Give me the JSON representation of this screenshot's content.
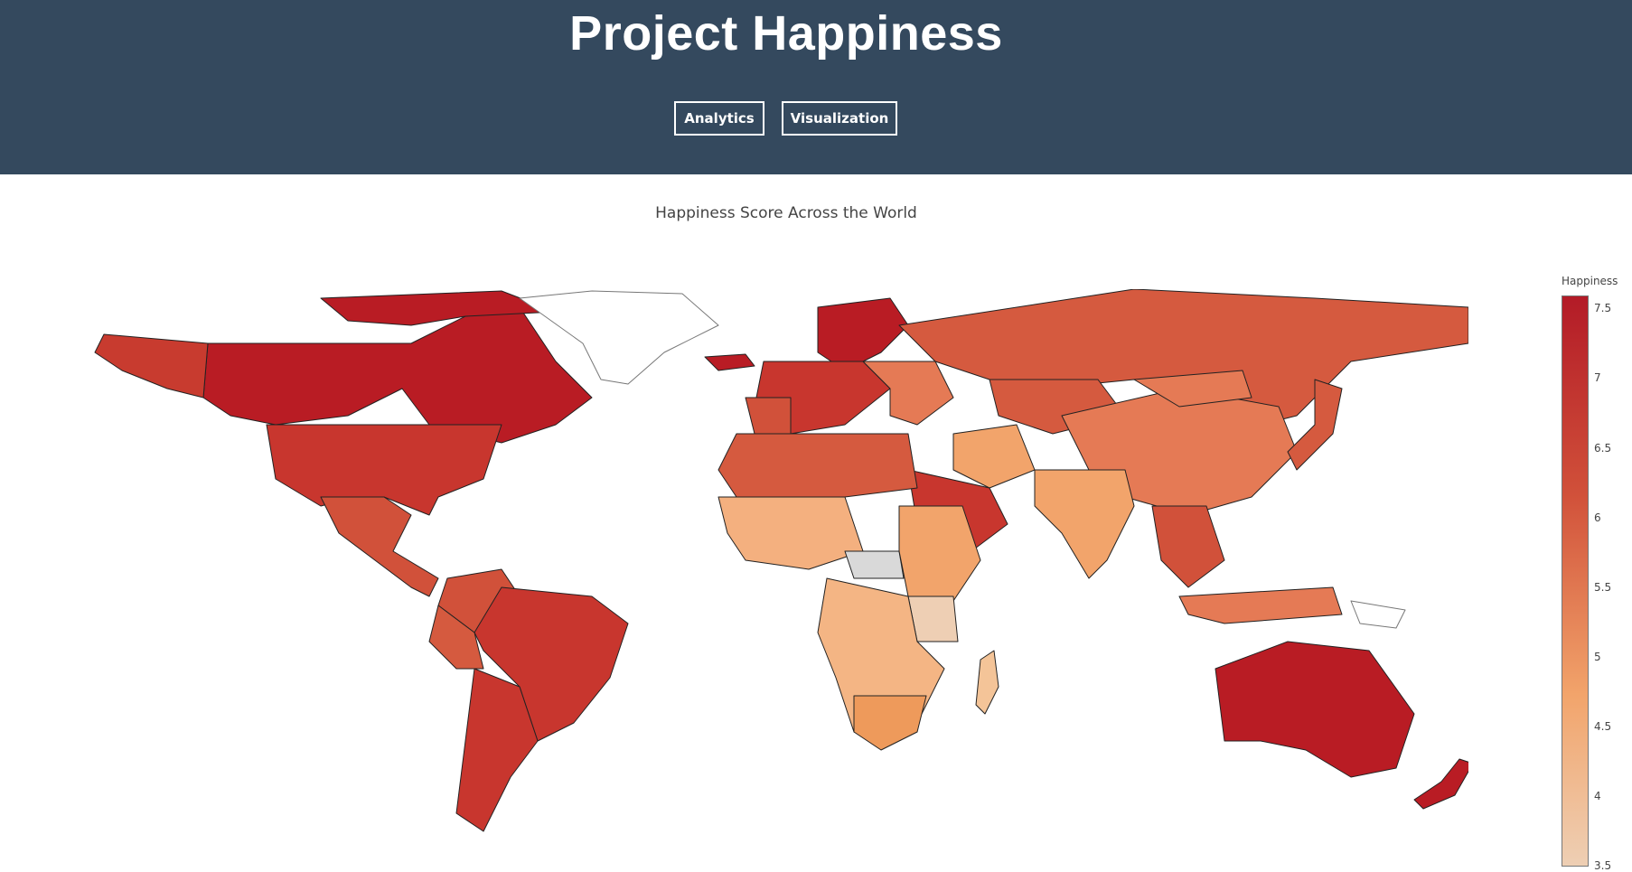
{
  "app": {
    "title": "Project Happiness"
  },
  "nav": [
    {
      "label": "Analytics"
    },
    {
      "label": "Visualization"
    }
  ],
  "colors": {
    "header_bg": "#34495e",
    "scale_low": "#eecfb4",
    "scale_mid": "#f2a46b",
    "scale_high": "#b31b27",
    "no_data": "#ffffff",
    "no_data_grey": "#d9d9d9"
  },
  "chart_data": {
    "type": "choropleth",
    "title": "Happiness Score Across the World",
    "colorbar_title": "Happiness",
    "colorbar_ticks": [
      "7.5",
      "7",
      "6.5",
      "6",
      "5.5",
      "5",
      "4.5",
      "4",
      "3.5"
    ],
    "range": [
      3.5,
      7.6
    ],
    "regions": [
      {
        "name": "Canada",
        "value": 7.3
      },
      {
        "name": "United States",
        "value": 6.9
      },
      {
        "name": "Mexico",
        "value": 6.6
      },
      {
        "name": "Brazil",
        "value": 6.5
      },
      {
        "name": "Argentina",
        "value": 6.6
      },
      {
        "name": "Greenland",
        "value": null
      },
      {
        "name": "Iceland",
        "value": 7.5
      },
      {
        "name": "Norway",
        "value": 7.5
      },
      {
        "name": "Sweden",
        "value": 7.3
      },
      {
        "name": "Finland",
        "value": 7.5
      },
      {
        "name": "Russia",
        "value": 5.9
      },
      {
        "name": "China",
        "value": 5.2
      },
      {
        "name": "India",
        "value": 4.3
      },
      {
        "name": "Saudi Arabia",
        "value": 6.4
      },
      {
        "name": "Algeria",
        "value": 6.0
      },
      {
        "name": "Central African Republic",
        "value": null
      },
      {
        "name": "Tanzania",
        "value": 3.5
      },
      {
        "name": "South Africa",
        "value": 4.8
      },
      {
        "name": "Madagascar",
        "value": 3.9
      },
      {
        "name": "Indonesia",
        "value": 5.3
      },
      {
        "name": "Australia",
        "value": 7.3
      },
      {
        "name": "New Zealand",
        "value": 7.3
      },
      {
        "name": "Japan",
        "value": 5.9
      }
    ]
  }
}
